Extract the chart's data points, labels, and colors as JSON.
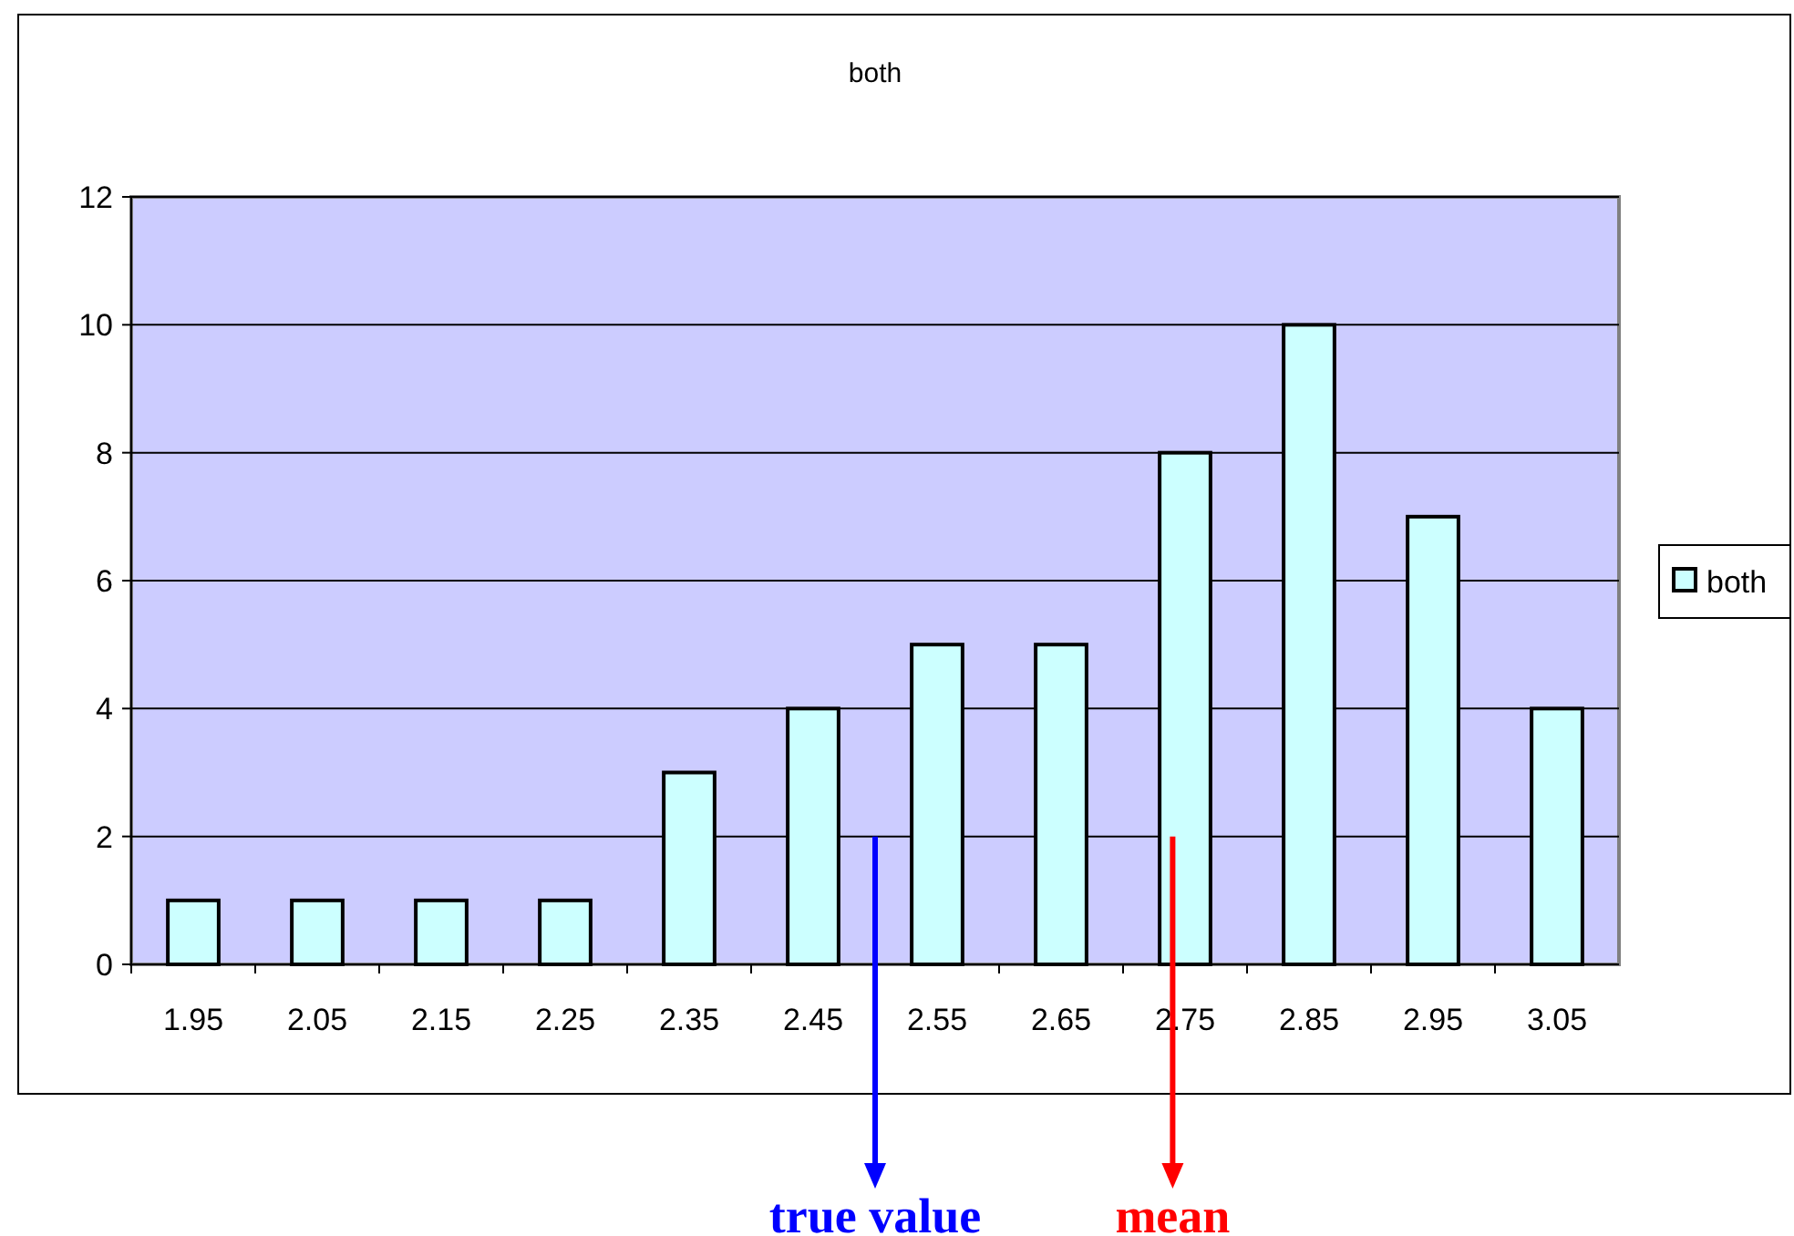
{
  "chart_data": {
    "type": "bar",
    "title": "both",
    "x": [
      1.95,
      2.05,
      2.15,
      2.25,
      2.35,
      2.45,
      2.55,
      2.65,
      2.75,
      2.85,
      2.95,
      3.05
    ],
    "xlim": [
      1.9,
      3.1
    ],
    "xticks": [
      1.95,
      2.05,
      2.15,
      2.25,
      2.35,
      2.45,
      2.55,
      2.65,
      2.75,
      2.85,
      2.95,
      3.05
    ],
    "ylim": [
      0,
      12
    ],
    "yticks": [
      0,
      2,
      4,
      6,
      8,
      10,
      12
    ],
    "grid": "y",
    "legend": "right",
    "series": [
      {
        "name": "both",
        "color": "#ccffff",
        "values": [
          1,
          1,
          1,
          1,
          3,
          4,
          5,
          5,
          8,
          10,
          7,
          4
        ]
      }
    ],
    "ref_lines": [
      {
        "axis": "x",
        "value": 2.5,
        "label": "true value",
        "color": "#0000ff"
      },
      {
        "axis": "x",
        "value": 2.74,
        "label": "mean",
        "color": "#ff0000"
      }
    ]
  }
}
